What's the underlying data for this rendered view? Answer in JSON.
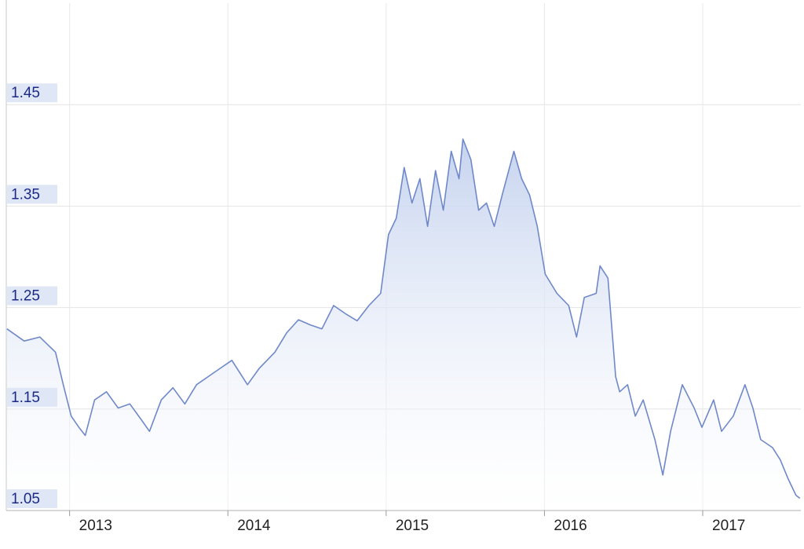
{
  "chart_data": {
    "type": "area",
    "x": [
      2012.604,
      2012.713,
      2012.812,
      2012.911,
      2012.96,
      2013.01,
      2013.059,
      2013.099,
      2013.158,
      2013.233,
      2013.307,
      2013.381,
      2013.455,
      2013.505,
      2013.579,
      2013.653,
      2013.728,
      2013.802,
      2013.876,
      2013.95,
      2014.025,
      2014.124,
      2014.198,
      2014.297,
      2014.371,
      2014.446,
      2014.52,
      2014.594,
      2014.668,
      2014.743,
      2014.817,
      2014.891,
      2014.965,
      2015.015,
      2015.064,
      2015.114,
      2015.163,
      2015.213,
      2015.262,
      2015.312,
      2015.361,
      2015.411,
      2015.46,
      2015.485,
      2015.535,
      2015.584,
      2015.634,
      2015.683,
      2015.733,
      2015.807,
      2015.856,
      2015.906,
      2015.955,
      2016.005,
      2016.079,
      2016.153,
      2016.203,
      2016.252,
      2016.327,
      2016.351,
      2016.401,
      2016.45,
      2016.475,
      2016.525,
      2016.574,
      2016.624,
      2016.698,
      2016.748,
      2016.797,
      2016.871,
      2016.946,
      2016.995,
      2017.069,
      2017.119,
      2017.193,
      2017.267,
      2017.317,
      2017.366,
      2017.441,
      2017.49,
      2017.54,
      2017.589,
      2017.614
    ],
    "values": [
      1.229,
      1.217,
      1.221,
      1.206,
      1.174,
      1.143,
      1.132,
      1.124,
      1.159,
      1.167,
      1.151,
      1.155,
      1.139,
      1.128,
      1.159,
      1.171,
      1.155,
      1.174,
      1.182,
      1.19,
      1.198,
      1.174,
      1.19,
      1.206,
      1.225,
      1.238,
      1.233,
      1.229,
      1.252,
      1.244,
      1.237,
      1.252,
      1.264,
      1.322,
      1.338,
      1.388,
      1.353,
      1.377,
      1.33,
      1.385,
      1.346,
      1.404,
      1.377,
      1.416,
      1.396,
      1.346,
      1.353,
      1.33,
      1.361,
      1.404,
      1.377,
      1.361,
      1.33,
      1.283,
      1.264,
      1.252,
      1.221,
      1.26,
      1.264,
      1.291,
      1.279,
      1.182,
      1.167,
      1.174,
      1.143,
      1.159,
      1.12,
      1.085,
      1.128,
      1.174,
      1.151,
      1.132,
      1.159,
      1.128,
      1.143,
      1.174,
      1.151,
      1.12,
      1.112,
      1.1,
      1.081,
      1.065,
      1.062
    ],
    "color": "#6f88c9",
    "fill_color": "#c3d1ee",
    "xlim": [
      2012.6,
      2017.62
    ],
    "xticks": [
      2013,
      2014,
      2015,
      2016,
      2017
    ],
    "ylim": [
      1.05,
      1.55
    ],
    "yticks": [
      1.05,
      1.15,
      1.25,
      1.35,
      1.45
    ],
    "grid": true
  }
}
